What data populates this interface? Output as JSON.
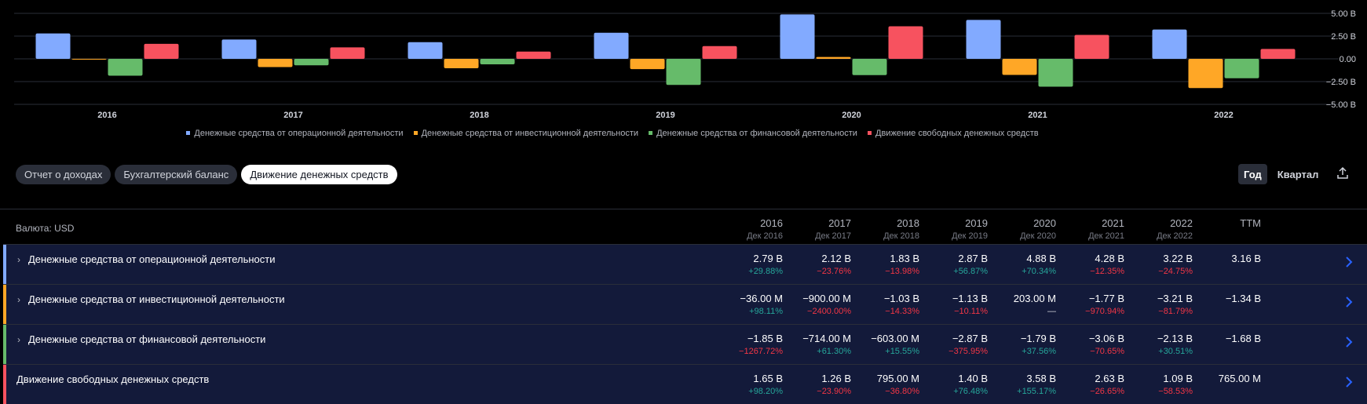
{
  "chart_data": {
    "type": "bar",
    "categories": [
      "2016",
      "2017",
      "2018",
      "2019",
      "2020",
      "2021",
      "2022"
    ],
    "yticks": [
      "5.00 B",
      "2.50 B",
      "0.00",
      "−2.50 B",
      "−5.00 B"
    ],
    "ylim": [
      -5,
      5
    ],
    "series": [
      {
        "name": "Денежные средства от операционной деятельности",
        "color": "#82aaff",
        "values": [
          2.79,
          2.12,
          1.83,
          2.87,
          4.88,
          4.28,
          3.22
        ]
      },
      {
        "name": "Денежные средства от инвестиционной деятельности",
        "color": "#ffa726",
        "values": [
          -0.036,
          -0.9,
          -1.03,
          -1.13,
          0.203,
          -1.77,
          -3.21
        ]
      },
      {
        "name": "Денежные средства от финансовой деятельности",
        "color": "#66bb6a",
        "values": [
          -1.85,
          -0.714,
          -0.603,
          -2.87,
          -1.79,
          -3.06,
          -2.13
        ]
      },
      {
        "name": "Движение свободных денежных средств",
        "color": "#f7525f",
        "values": [
          1.65,
          1.26,
          0.795,
          1.4,
          3.58,
          2.63,
          1.09
        ]
      }
    ]
  },
  "tabs": [
    "Отчет о доходах",
    "Бухгалтерский баланс",
    "Движение денежных средств"
  ],
  "period": {
    "year": "Год",
    "quarter": "Квартал"
  },
  "table": {
    "currency": "Валюта: USD",
    "columns": [
      {
        "year": "2016",
        "period": "Дек 2016"
      },
      {
        "year": "2017",
        "period": "Дек 2017"
      },
      {
        "year": "2018",
        "period": "Дек 2018"
      },
      {
        "year": "2019",
        "period": "Дек 2019"
      },
      {
        "year": "2020",
        "period": "Дек 2020"
      },
      {
        "year": "2021",
        "period": "Дек 2021"
      },
      {
        "year": "2022",
        "period": "Дек 2022"
      },
      {
        "year": "TTM",
        "period": ""
      }
    ],
    "rows": [
      {
        "label": "Денежные средства от операционной деятельности",
        "expandable": true,
        "color": "#82aaff",
        "values": [
          "2.79 B",
          "2.12 B",
          "1.83 B",
          "2.87 B",
          "4.88 B",
          "4.28 B",
          "3.22 B",
          "3.16 B"
        ],
        "changes": [
          "+29.88%",
          "−23.76%",
          "−13.98%",
          "+56.87%",
          "+70.34%",
          "−12.35%",
          "−24.75%",
          ""
        ]
      },
      {
        "label": "Денежные средства от инвестиционной деятельности",
        "expandable": true,
        "color": "#ffa726",
        "values": [
          "−36.00 M",
          "−900.00 M",
          "−1.03 B",
          "−1.13 B",
          "203.00 M",
          "−1.77 B",
          "−3.21 B",
          "−1.34 B"
        ],
        "changes": [
          "+98.11%",
          "−2400.00%",
          "−14.33%",
          "−10.11%",
          "—",
          "−970.94%",
          "−81.79%",
          ""
        ]
      },
      {
        "label": "Денежные средства от финансовой деятельности",
        "expandable": true,
        "color": "#66bb6a",
        "values": [
          "−1.85 B",
          "−714.00 M",
          "−603.00 M",
          "−2.87 B",
          "−1.79 B",
          "−3.06 B",
          "−2.13 B",
          "−1.68 B"
        ],
        "changes": [
          "−1267.72%",
          "+61.30%",
          "+15.55%",
          "−375.95%",
          "+37.56%",
          "−70.65%",
          "+30.51%",
          ""
        ]
      },
      {
        "label": "Движение свободных денежных средств",
        "expandable": false,
        "color": "#f7525f",
        "values": [
          "1.65 B",
          "1.26 B",
          "795.00 M",
          "1.40 B",
          "3.58 B",
          "2.63 B",
          "1.09 B",
          "765.00 M"
        ],
        "changes": [
          "+98.20%",
          "−23.90%",
          "−36.80%",
          "+76.48%",
          "+155.17%",
          "−26.65%",
          "−58.53%",
          ""
        ]
      }
    ]
  }
}
